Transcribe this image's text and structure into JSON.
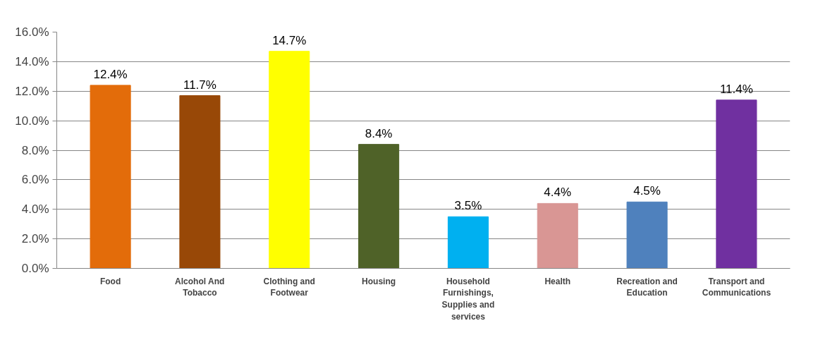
{
  "chart_data": {
    "type": "bar",
    "categories": [
      "Food",
      "Alcohol And Tobacco",
      "Clothing and Footwear",
      "Housing",
      "Household Furnishings, Supplies and services",
      "Health",
      "Recreation and Education",
      "Transport and Communications"
    ],
    "values": [
      12.4,
      11.7,
      14.7,
      8.4,
      3.5,
      4.4,
      4.5,
      11.4
    ],
    "colors": [
      "#e36c0a",
      "#984807",
      "#ffff00",
      "#4f6228",
      "#00b0f0",
      "#d99694",
      "#4f81bd",
      "#7030a0"
    ],
    "value_labels": [
      "12.4%",
      "11.7%",
      "14.7%",
      "8.4%",
      "3.5%",
      "4.4%",
      "4.5%",
      "11.4%"
    ],
    "ylim": [
      0,
      16
    ],
    "yticks": [
      {
        "value": 0,
        "label": "0.0%"
      },
      {
        "value": 2,
        "label": "2.0%"
      },
      {
        "value": 4,
        "label": "4.0%"
      },
      {
        "value": 6,
        "label": "6.0%"
      },
      {
        "value": 8,
        "label": "8.0%"
      },
      {
        "value": 10,
        "label": "10.0%"
      },
      {
        "value": 12,
        "label": "12.0%"
      },
      {
        "value": 14,
        "label": "14.0%"
      },
      {
        "value": 16,
        "label": "16.0%"
      }
    ],
    "grid": "y"
  }
}
